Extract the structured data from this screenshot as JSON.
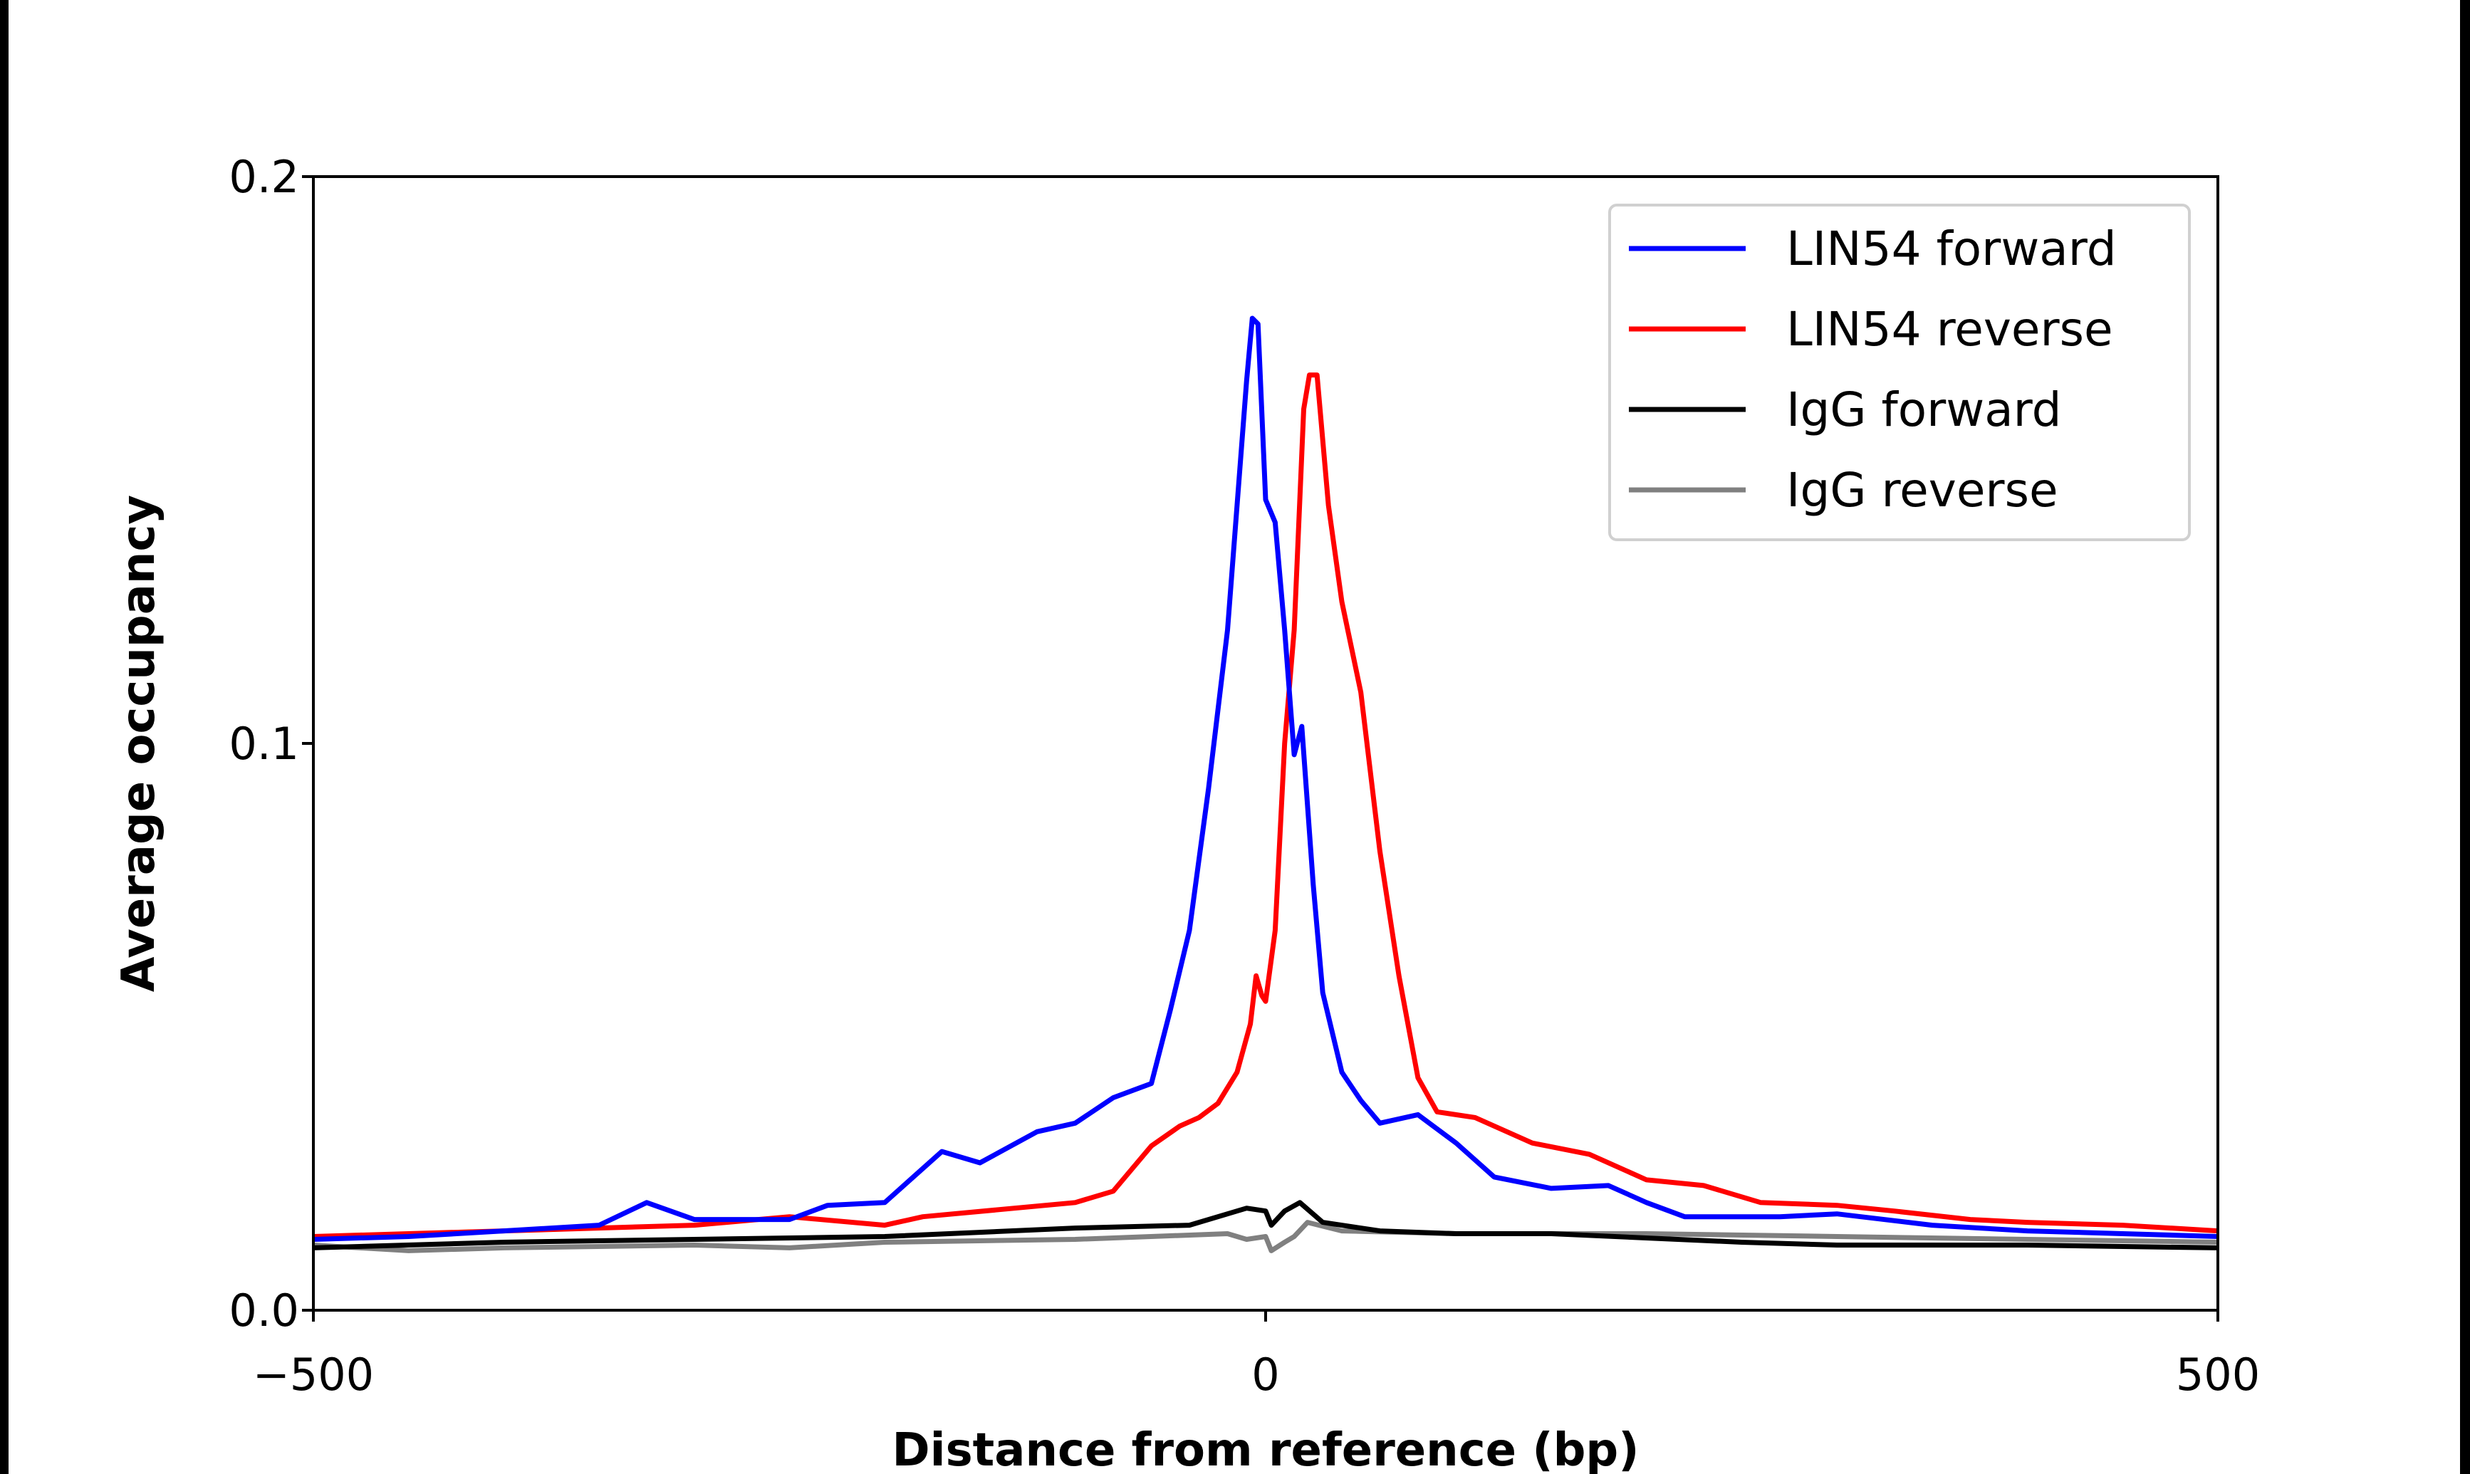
{
  "chart_data": {
    "type": "line",
    "title": "",
    "xlabel": "Distance from reference (bp)",
    "ylabel": "Average occupancy",
    "xlim": [
      -500,
      500
    ],
    "ylim": [
      0,
      0.2
    ],
    "xticks": [
      -500,
      0,
      500
    ],
    "xtick_labels": [
      "−500",
      "0",
      "500"
    ],
    "yticks": [
      0,
      0.1,
      0.2
    ],
    "ytick_labels": [
      "0.0",
      "0.1",
      "0.2"
    ],
    "grid": false,
    "legend_position": "top-right",
    "series": [
      {
        "name": "LIN54 forward",
        "color": "#0000ff",
        "x": [
          -500,
          -450,
          -400,
          -350,
          -325,
          -300,
          -250,
          -230,
          -200,
          -170,
          -150,
          -120,
          -100,
          -80,
          -60,
          -50,
          -40,
          -30,
          -20,
          -10,
          -7,
          -4,
          0,
          5,
          10,
          15,
          19,
          25,
          30,
          40,
          50,
          60,
          80,
          100,
          120,
          150,
          180,
          200,
          220,
          270,
          300,
          350,
          400,
          450,
          500
        ],
        "y": [
          0.0125,
          0.013,
          0.014,
          0.015,
          0.019,
          0.016,
          0.016,
          0.0185,
          0.019,
          0.028,
          0.026,
          0.0315,
          0.033,
          0.0375,
          0.04,
          0.053,
          0.067,
          0.092,
          0.12,
          0.164,
          0.175,
          0.174,
          0.143,
          0.139,
          0.12,
          0.098,
          0.103,
          0.075,
          0.056,
          0.042,
          0.037,
          0.033,
          0.0345,
          0.0295,
          0.0235,
          0.0215,
          0.022,
          0.019,
          0.0165,
          0.0165,
          0.017,
          0.015,
          0.014,
          0.0135,
          0.013
        ]
      },
      {
        "name": "LIN54 reverse",
        "color": "#ff0000",
        "x": [
          -500,
          -450,
          -400,
          -300,
          -250,
          -200,
          -180,
          -100,
          -80,
          -60,
          -45,
          -35,
          -25,
          -15,
          -8,
          -5,
          -2,
          0,
          5,
          10,
          15,
          20,
          23,
          27,
          33,
          40,
          50,
          60,
          70,
          80,
          90,
          110,
          140,
          170,
          200,
          230,
          260,
          300,
          330,
          370,
          400,
          450,
          500
        ],
        "y": [
          0.013,
          0.0135,
          0.014,
          0.015,
          0.0165,
          0.015,
          0.0165,
          0.019,
          0.021,
          0.029,
          0.0325,
          0.034,
          0.0365,
          0.042,
          0.0505,
          0.059,
          0.0555,
          0.0545,
          0.067,
          0.1,
          0.12,
          0.159,
          0.165,
          0.165,
          0.142,
          0.125,
          0.109,
          0.081,
          0.059,
          0.041,
          0.035,
          0.034,
          0.0295,
          0.0275,
          0.023,
          0.022,
          0.019,
          0.0185,
          0.0175,
          0.016,
          0.0155,
          0.015,
          0.014
        ]
      },
      {
        "name": "IgG forward",
        "color": "#000000",
        "x": [
          -500,
          -400,
          -300,
          -200,
          -100,
          -40,
          -10,
          0,
          3,
          10,
          18,
          30,
          60,
          100,
          150,
          250,
          300,
          400,
          500
        ],
        "y": [
          0.011,
          0.012,
          0.0125,
          0.013,
          0.0145,
          0.015,
          0.018,
          0.0175,
          0.015,
          0.0175,
          0.019,
          0.0155,
          0.014,
          0.0135,
          0.0135,
          0.012,
          0.0115,
          0.0115,
          0.011
        ]
      },
      {
        "name": "IgG reverse",
        "color": "#808080",
        "x": [
          -500,
          -450,
          -400,
          -300,
          -250,
          -200,
          -100,
          -20,
          -10,
          0,
          3,
          10,
          15,
          22,
          40,
          100,
          200,
          300,
          400,
          500
        ],
        "y": [
          0.0115,
          0.0105,
          0.011,
          0.0115,
          0.011,
          0.012,
          0.0125,
          0.0135,
          0.0125,
          0.013,
          0.0105,
          0.012,
          0.013,
          0.0155,
          0.014,
          0.0135,
          0.0135,
          0.013,
          0.0125,
          0.012
        ]
      }
    ]
  }
}
